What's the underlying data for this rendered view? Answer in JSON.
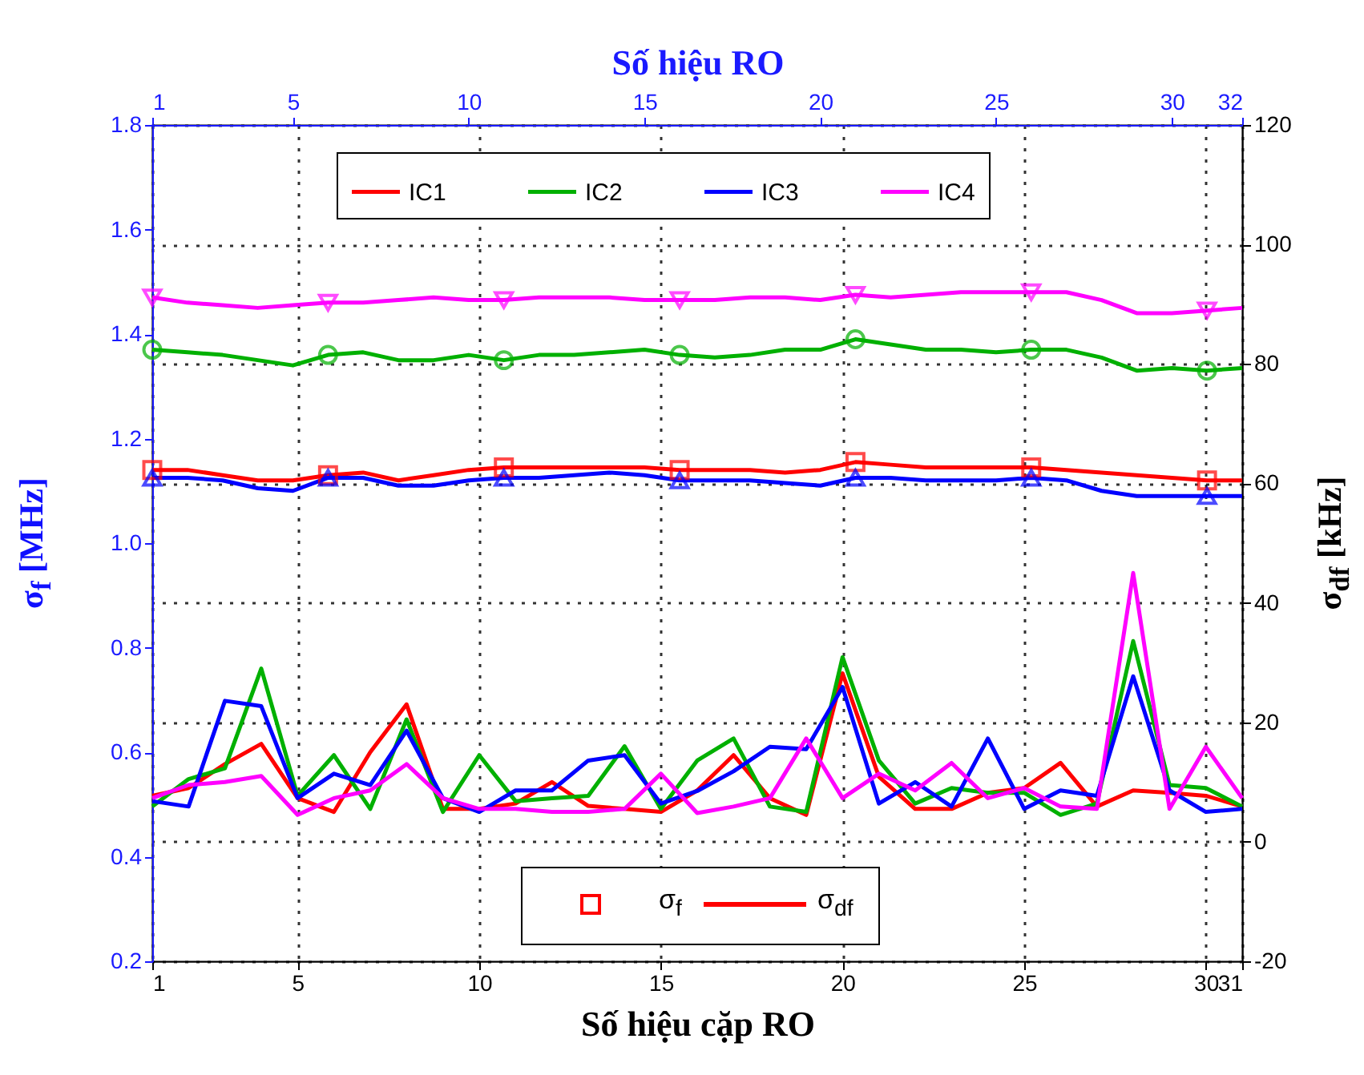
{
  "chart_data": {
    "type": "line",
    "xlabel": "Số hiệu cặp RO",
    "x2label": "Số hiệu RO",
    "ylabel": "σ$_{f}$ [MHz]",
    "y2label": "σ$_{df}$ [kHz]",
    "annotations": [
      "σ$_{f}$",
      "σ$_{df}$"
    ],
    "x": [
      1,
      2,
      3,
      4,
      5,
      6,
      7,
      8,
      9,
      10,
      11,
      12,
      13,
      14,
      15,
      16,
      17,
      18,
      19,
      20,
      21,
      22,
      23,
      24,
      25,
      26,
      27,
      28,
      29,
      30,
      31
    ],
    "xlim": [
      1,
      31
    ],
    "xticks": [
      1,
      5,
      10,
      15,
      20,
      25,
      30,
      31
    ],
    "x2lim": [
      1,
      32
    ],
    "x2ticks": [
      1,
      5,
      10,
      15,
      20,
      25,
      30,
      32
    ],
    "ylim": [
      0.2,
      1.8
    ],
    "yticks": [
      0.2,
      0.4,
      0.6,
      0.8,
      {
        "value": 1,
        "label": "1.0"
      },
      1.2,
      1.4,
      1.6,
      1.8
    ],
    "y2lim": [
      -20,
      120
    ],
    "y2ticks": [
      -20,
      0,
      20,
      40,
      60,
      80,
      100,
      120
    ],
    "grid": true,
    "legend": "top",
    "line_style": "solid",
    "series": [
      {
        "name": "IC1",
        "color": "#ff0000",
        "type": "line",
        "axis": "x2",
        "x": [
          1,
          2,
          3,
          4,
          5,
          6,
          7,
          8,
          9,
          10,
          11,
          12,
          13,
          14,
          15,
          16,
          17,
          18,
          19,
          20,
          21,
          22,
          23,
          24,
          25,
          26,
          27,
          28,
          29,
          30,
          31,
          32
        ],
        "values": [
          1.14,
          1.14,
          1.13,
          1.12,
          1.12,
          1.13,
          1.135,
          1.12,
          1.13,
          1.14,
          1.145,
          1.145,
          1.145,
          1.145,
          1.145,
          1.14,
          1.14,
          1.14,
          1.135,
          1.14,
          1.155,
          1.15,
          1.145,
          1.145,
          1.145,
          1.145,
          1.14,
          1.135,
          1.13,
          1.125,
          1.12,
          1.12
        ]
      },
      {
        "name": "IC2",
        "color": "#00b000",
        "type": "line",
        "axis": "x2",
        "x": [
          1,
          2,
          3,
          4,
          5,
          6,
          7,
          8,
          9,
          10,
          11,
          12,
          13,
          14,
          15,
          16,
          17,
          18,
          19,
          20,
          21,
          22,
          23,
          24,
          25,
          26,
          27,
          28,
          29,
          30,
          31,
          32
        ],
        "values": [
          1.37,
          1.365,
          1.36,
          1.35,
          1.34,
          1.36,
          1.365,
          1.35,
          1.35,
          1.36,
          1.35,
          1.36,
          1.36,
          1.365,
          1.37,
          1.36,
          1.355,
          1.36,
          1.37,
          1.37,
          1.39,
          1.38,
          1.37,
          1.37,
          1.365,
          1.37,
          1.37,
          1.355,
          1.33,
          1.335,
          1.33,
          1.335
        ]
      },
      {
        "name": "IC3",
        "color": "#0000ff",
        "type": "line",
        "axis": "x2",
        "x": [
          1,
          2,
          3,
          4,
          5,
          6,
          7,
          8,
          9,
          10,
          11,
          12,
          13,
          14,
          15,
          16,
          17,
          18,
          19,
          20,
          21,
          22,
          23,
          24,
          25,
          26,
          27,
          28,
          29,
          30,
          31,
          32
        ],
        "values": [
          1.125,
          1.125,
          1.12,
          1.105,
          1.1,
          1.125,
          1.125,
          1.11,
          1.11,
          1.12,
          1.125,
          1.125,
          1.13,
          1.135,
          1.13,
          1.12,
          1.12,
          1.12,
          1.115,
          1.11,
          1.125,
          1.125,
          1.12,
          1.12,
          1.12,
          1.125,
          1.12,
          1.1,
          1.09,
          1.09,
          1.09,
          1.09
        ]
      },
      {
        "name": "IC4",
        "color": "#ff00ff",
        "type": "line",
        "axis": "x2",
        "x": [
          1,
          2,
          3,
          4,
          5,
          6,
          7,
          8,
          9,
          10,
          11,
          12,
          13,
          14,
          15,
          16,
          17,
          18,
          19,
          20,
          21,
          22,
          23,
          24,
          25,
          26,
          27,
          28,
          29,
          30,
          31,
          32
        ],
        "values": [
          1.47,
          1.46,
          1.455,
          1.45,
          1.455,
          1.46,
          1.46,
          1.465,
          1.47,
          1.465,
          1.465,
          1.47,
          1.47,
          1.47,
          1.465,
          1.465,
          1.465,
          1.47,
          1.47,
          1.465,
          1.475,
          1.47,
          1.475,
          1.48,
          1.48,
          1.48,
          1.48,
          1.465,
          1.44,
          1.44,
          1.445,
          1.45
        ]
      },
      {
        "color": "#ff0000",
        "type": "scatter",
        "marker": "square",
        "axis": "x2",
        "x": [
          1,
          6,
          11,
          16,
          21,
          26,
          31
        ],
        "values": [
          1.14,
          1.13,
          1.145,
          1.14,
          1.155,
          1.145,
          1.12
        ]
      },
      {
        "color": "#00b000",
        "type": "scatter",
        "marker": "circle",
        "axis": "x2",
        "x": [
          1,
          6,
          11,
          16,
          21,
          26,
          31
        ],
        "values": [
          1.37,
          1.36,
          1.35,
          1.36,
          1.39,
          1.37,
          1.33
        ]
      },
      {
        "color": "#0000ff",
        "type": "scatter",
        "marker": "triangle",
        "axis": "x2",
        "x": [
          1,
          6,
          11,
          16,
          21,
          26,
          31
        ],
        "values": [
          1.125,
          1.125,
          1.125,
          1.12,
          1.125,
          1.125,
          1.09
        ]
      },
      {
        "color": "#ff00ff",
        "type": "scatter",
        "marker": "triangle-down",
        "axis": "x2",
        "x": [
          1,
          6,
          11,
          16,
          21,
          26,
          31
        ],
        "values": [
          1.47,
          1.46,
          1.465,
          1.465,
          1.475,
          1.48,
          1.445
        ]
      },
      {
        "color": "#ff0000",
        "type": "line",
        "axis": "y2",
        "values": [
          7.7,
          9,
          13,
          16.4,
          7.3,
          5,
          15,
          23,
          5.5,
          5.5,
          6.4,
          10,
          6,
          5.5,
          5,
          8.6,
          14.5,
          7.3,
          4.5,
          28.2,
          10.9,
          5.5,
          5.5,
          8.2,
          9,
          13.2,
          5.9,
          8.6,
          8.2,
          7.7,
          5.9
        ]
      },
      {
        "color": "#00b000",
        "type": "line",
        "axis": "y2",
        "values": [
          5.9,
          10.5,
          12.3,
          29,
          7.7,
          14.5,
          5.5,
          20.5,
          5,
          14.5,
          6.8,
          7.3,
          7.7,
          16,
          5.5,
          13.6,
          17.3,
          5.9,
          5,
          30.9,
          13.6,
          6.4,
          9,
          8.2,
          8.2,
          4.5,
          6.4,
          33.6,
          9.5,
          9,
          5.9
        ]
      },
      {
        "color": "#0000ff",
        "type": "line",
        "axis": "y2",
        "values": [
          6.8,
          5.9,
          23.6,
          22.7,
          7.3,
          11.4,
          9.5,
          18.6,
          7.3,
          5,
          8.6,
          8.6,
          13.6,
          14.5,
          6.4,
          8.5,
          11.8,
          15.9,
          15.5,
          25.9,
          6.4,
          10,
          5.9,
          17.3,
          5.5,
          8.6,
          7.7,
          27.7,
          8.6,
          5,
          5.5
        ]
      },
      {
        "color": "#ff00ff",
        "type": "line",
        "axis": "y2",
        "values": [
          7.3,
          9.5,
          10,
          11,
          4.5,
          7.3,
          8.6,
          13,
          7.3,
          5.5,
          5.5,
          5,
          5,
          5.5,
          11.4,
          4.8,
          5.9,
          7.3,
          17.3,
          7.3,
          11.4,
          8.6,
          13.2,
          7.3,
          9,
          5.9,
          5.5,
          45,
          5.5,
          15.9,
          7.3
        ]
      }
    ]
  }
}
